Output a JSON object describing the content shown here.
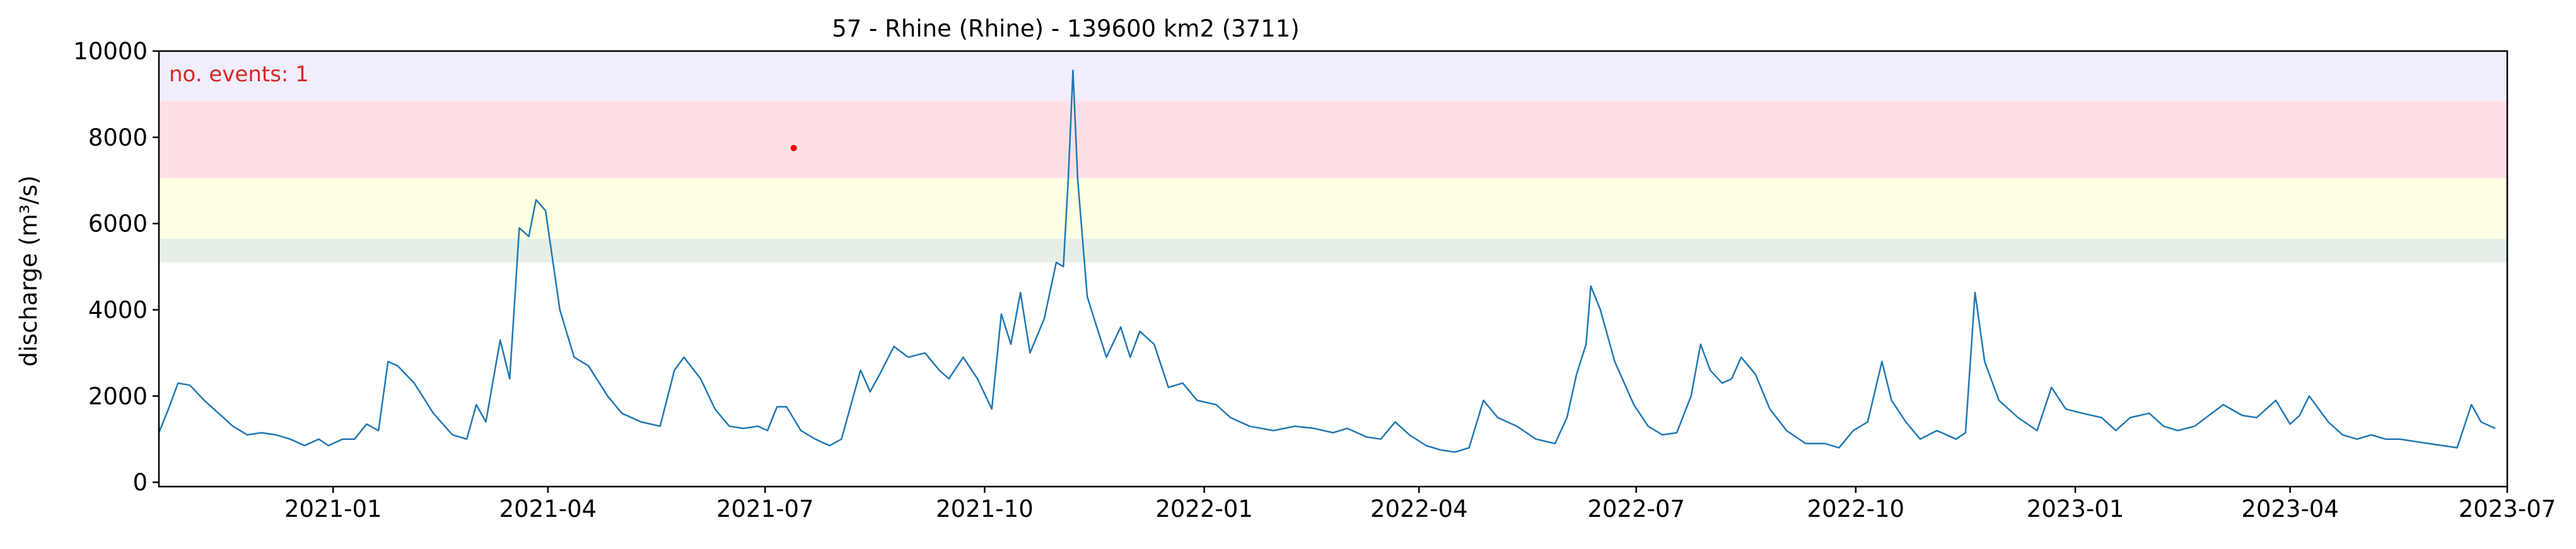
{
  "chart_data": {
    "type": "line",
    "title": "57 - Rhine (Rhine) - 139600 km2 (3711)",
    "xlabel": "",
    "ylabel": "discharge (m³/s)",
    "ylim": [
      -100,
      10000
    ],
    "xlim": [
      "2020-10-20",
      "2023-07-01"
    ],
    "grid": false,
    "annotation": {
      "text": "no. events: 1",
      "color": "#d62728"
    },
    "threshold_bands": [
      {
        "from": 5100,
        "to": 5650,
        "color": "#e5efe5"
      },
      {
        "from": 5650,
        "to": 7050,
        "color": "#ffffe3"
      },
      {
        "from": 7050,
        "to": 8850,
        "color": "#ffe1e5"
      },
      {
        "from": 8850,
        "to": 10000,
        "color": "#f1eefb"
      }
    ],
    "x_ticks": [
      "2021-01",
      "2021-04",
      "2021-07",
      "2021-10",
      "2022-01",
      "2022-04",
      "2022-07",
      "2022-10",
      "2023-01",
      "2023-04",
      "2023-07"
    ],
    "y_ticks": [
      "0",
      "2000",
      "4000",
      "6000",
      "8000",
      "10000"
    ],
    "series": [
      {
        "color": "#1f77b4",
        "points": [
          [
            "2020-10-20",
            1150
          ],
          [
            "2020-10-24",
            1700
          ],
          [
            "2020-10-28",
            2300
          ],
          [
            "2020-11-02",
            2250
          ],
          [
            "2020-11-08",
            1900
          ],
          [
            "2020-11-14",
            1600
          ],
          [
            "2020-11-20",
            1300
          ],
          [
            "2020-11-26",
            1100
          ],
          [
            "2020-12-02",
            1150
          ],
          [
            "2020-12-08",
            1100
          ],
          [
            "2020-12-14",
            1000
          ],
          [
            "2020-12-20",
            850
          ],
          [
            "2020-12-26",
            1000
          ],
          [
            "2020-12-30",
            850
          ],
          [
            "2021-01-05",
            1000
          ],
          [
            "2021-01-10",
            1000
          ],
          [
            "2021-01-15",
            1350
          ],
          [
            "2021-01-20",
            1200
          ],
          [
            "2021-01-24",
            2800
          ],
          [
            "2021-01-28",
            2700
          ],
          [
            "2021-02-04",
            2300
          ],
          [
            "2021-02-12",
            1600
          ],
          [
            "2021-02-20",
            1100
          ],
          [
            "2021-02-26",
            1000
          ],
          [
            "2021-03-02",
            1800
          ],
          [
            "2021-03-06",
            1400
          ],
          [
            "2021-03-12",
            3300
          ],
          [
            "2021-03-16",
            2400
          ],
          [
            "2021-03-20",
            5900
          ],
          [
            "2021-03-24",
            5700
          ],
          [
            "2021-03-27",
            6550
          ],
          [
            "2021-03-31",
            6300
          ],
          [
            "2021-04-06",
            4000
          ],
          [
            "2021-04-12",
            2900
          ],
          [
            "2021-04-18",
            2700
          ],
          [
            "2021-04-26",
            2000
          ],
          [
            "2021-05-02",
            1600
          ],
          [
            "2021-05-10",
            1400
          ],
          [
            "2021-05-18",
            1300
          ],
          [
            "2021-05-24",
            2600
          ],
          [
            "2021-05-28",
            2900
          ],
          [
            "2021-06-04",
            2400
          ],
          [
            "2021-06-10",
            1700
          ],
          [
            "2021-06-16",
            1300
          ],
          [
            "2021-06-22",
            1250
          ],
          [
            "2021-06-28",
            1300
          ],
          [
            "2021-07-02",
            1200
          ],
          [
            "2021-07-06",
            1750
          ],
          [
            "2021-07-10",
            1750
          ],
          [
            "2021-07-16",
            1200
          ],
          [
            "2021-07-22",
            1000
          ],
          [
            "2021-07-28",
            850
          ],
          [
            "2021-08-02",
            1000
          ],
          [
            "2021-08-06",
            1800
          ],
          [
            "2021-08-10",
            2600
          ],
          [
            "2021-08-14",
            2100
          ],
          [
            "2021-08-18",
            2500
          ],
          [
            "2021-08-24",
            3150
          ],
          [
            "2021-08-30",
            2900
          ],
          [
            "2021-09-06",
            3000
          ],
          [
            "2021-09-12",
            2600
          ],
          [
            "2021-09-16",
            2400
          ],
          [
            "2021-09-22",
            2900
          ],
          [
            "2021-09-28",
            2400
          ],
          [
            "2021-10-04",
            1700
          ],
          [
            "2021-10-08",
            3900
          ],
          [
            "2021-10-12",
            3200
          ],
          [
            "2021-10-16",
            4400
          ],
          [
            "2021-10-20",
            3000
          ],
          [
            "2021-10-26",
            3800
          ],
          [
            "2021-10-31",
            5100
          ],
          [
            "2021-11-03",
            5000
          ],
          [
            "2021-11-05",
            7000
          ],
          [
            "2021-11-07",
            9550
          ],
          [
            "2021-11-09",
            7000
          ],
          [
            "2021-11-13",
            4300
          ],
          [
            "2021-11-17",
            3600
          ],
          [
            "2021-11-21",
            2900
          ],
          [
            "2021-11-27",
            3600
          ],
          [
            "2021-12-01",
            2900
          ],
          [
            "2021-12-05",
            3500
          ],
          [
            "2021-12-11",
            3200
          ],
          [
            "2021-12-17",
            2200
          ],
          [
            "2021-12-23",
            2300
          ],
          [
            "2021-12-29",
            1900
          ],
          [
            "2022-01-06",
            1800
          ],
          [
            "2022-01-12",
            1500
          ],
          [
            "2022-01-20",
            1300
          ],
          [
            "2022-01-30",
            1200
          ],
          [
            "2022-02-08",
            1300
          ],
          [
            "2022-02-16",
            1250
          ],
          [
            "2022-02-24",
            1150
          ],
          [
            "2022-03-02",
            1250
          ],
          [
            "2022-03-10",
            1050
          ],
          [
            "2022-03-16",
            1000
          ],
          [
            "2022-03-22",
            1400
          ],
          [
            "2022-03-28",
            1100
          ],
          [
            "2022-04-04",
            850
          ],
          [
            "2022-04-10",
            750
          ],
          [
            "2022-04-16",
            700
          ],
          [
            "2022-04-22",
            800
          ],
          [
            "2022-04-28",
            1900
          ],
          [
            "2022-05-04",
            1500
          ],
          [
            "2022-05-12",
            1300
          ],
          [
            "2022-05-20",
            1000
          ],
          [
            "2022-05-28",
            900
          ],
          [
            "2022-06-02",
            1500
          ],
          [
            "2022-06-06",
            2500
          ],
          [
            "2022-06-10",
            3200
          ],
          [
            "2022-06-12",
            4550
          ],
          [
            "2022-06-16",
            4000
          ],
          [
            "2022-06-22",
            2800
          ],
          [
            "2022-06-30",
            1800
          ],
          [
            "2022-07-06",
            1300
          ],
          [
            "2022-07-12",
            1100
          ],
          [
            "2022-07-18",
            1150
          ],
          [
            "2022-07-24",
            2000
          ],
          [
            "2022-07-28",
            3200
          ],
          [
            "2022-08-01",
            2600
          ],
          [
            "2022-08-06",
            2300
          ],
          [
            "2022-08-10",
            2400
          ],
          [
            "2022-08-14",
            2900
          ],
          [
            "2022-08-20",
            2500
          ],
          [
            "2022-08-26",
            1700
          ],
          [
            "2022-09-02",
            1200
          ],
          [
            "2022-09-10",
            900
          ],
          [
            "2022-09-18",
            900
          ],
          [
            "2022-09-24",
            800
          ],
          [
            "2022-09-30",
            1200
          ],
          [
            "2022-10-06",
            1400
          ],
          [
            "2022-10-12",
            2800
          ],
          [
            "2022-10-16",
            1900
          ],
          [
            "2022-10-22",
            1400
          ],
          [
            "2022-10-28",
            1000
          ],
          [
            "2022-11-04",
            1200
          ],
          [
            "2022-11-12",
            1000
          ],
          [
            "2022-11-16",
            1150
          ],
          [
            "2022-11-20",
            4400
          ],
          [
            "2022-11-24",
            2800
          ],
          [
            "2022-11-30",
            1900
          ],
          [
            "2022-12-08",
            1500
          ],
          [
            "2022-12-16",
            1200
          ],
          [
            "2022-12-22",
            2200
          ],
          [
            "2022-12-28",
            1700
          ],
          [
            "2023-01-04",
            1600
          ],
          [
            "2023-01-12",
            1500
          ],
          [
            "2023-01-18",
            1200
          ],
          [
            "2023-01-24",
            1500
          ],
          [
            "2023-02-01",
            1600
          ],
          [
            "2023-02-07",
            1300
          ],
          [
            "2023-02-13",
            1200
          ],
          [
            "2023-02-20",
            1300
          ],
          [
            "2023-02-26",
            1550
          ],
          [
            "2023-03-04",
            1800
          ],
          [
            "2023-03-12",
            1550
          ],
          [
            "2023-03-18",
            1500
          ],
          [
            "2023-03-26",
            1900
          ],
          [
            "2023-04-01",
            1350
          ],
          [
            "2023-04-05",
            1550
          ],
          [
            "2023-04-09",
            2000
          ],
          [
            "2023-04-13",
            1700
          ],
          [
            "2023-04-17",
            1400
          ],
          [
            "2023-04-23",
            1100
          ],
          [
            "2023-04-29",
            1000
          ],
          [
            "2023-05-05",
            1100
          ],
          [
            "2023-05-11",
            1000
          ],
          [
            "2023-05-17",
            1000
          ],
          [
            "2023-05-23",
            950
          ],
          [
            "2023-05-29",
            900
          ],
          [
            "2023-06-04",
            850
          ],
          [
            "2023-06-10",
            800
          ],
          [
            "2023-06-16",
            1800
          ],
          [
            "2023-06-20",
            1400
          ],
          [
            "2023-06-26",
            1250
          ]
        ]
      }
    ],
    "events": [
      {
        "x": "2021-07-13",
        "y": 7750,
        "color": "#ff0000"
      }
    ]
  }
}
